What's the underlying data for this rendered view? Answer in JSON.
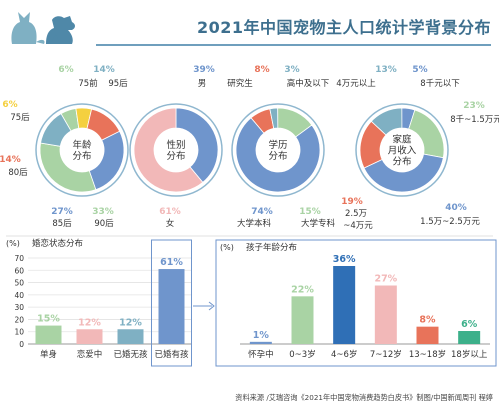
{
  "title": "2021年中国宠物主人口统计学背景分布",
  "source": "资料来源 /艾瑞咨询《2021年中国宠物消费趋势白皮书》制图/中国新闻周刊 程婷",
  "colors": {
    "blue": "#6f95cc",
    "pink": "#f2b8b8",
    "green": "#a9d3a4",
    "teal": "#7fb0c3",
    "red": "#e8735a",
    "yellow": "#f4d03f",
    "darkblue": "#2f6fb6",
    "grey": "#bbbbbb"
  },
  "chart_data": [
    {
      "type": "pie",
      "title": "年龄分布",
      "slices": [
        {
          "label": "75前",
          "value": 6,
          "text": "6%",
          "color": "#a9d3a4"
        },
        {
          "label": "75后",
          "value": 6,
          "text": "6%",
          "color": "#f4d03f"
        },
        {
          "label": "80后",
          "value": 14,
          "text": "14%",
          "color": "#e8735a"
        },
        {
          "label": "85后",
          "value": 27,
          "text": "27%",
          "color": "#6f95cc"
        },
        {
          "label": "90后",
          "value": 33,
          "text": "33%",
          "color": "#a9d3a4"
        },
        {
          "label": "95后",
          "value": 14,
          "text": "14%",
          "color": "#7fb0c3"
        }
      ]
    },
    {
      "type": "pie",
      "title": "性别分布",
      "slices": [
        {
          "label": "男",
          "value": 39,
          "text": "39%",
          "color": "#6f95cc"
        },
        {
          "label": "女",
          "value": 61,
          "text": "61%",
          "color": "#f2b8b8"
        }
      ]
    },
    {
      "type": "pie",
      "title": "学历分布",
      "slices": [
        {
          "label": "研究生",
          "value": 8,
          "text": "8%",
          "color": "#e8735a"
        },
        {
          "label": "高中及以下",
          "value": 3,
          "text": "3%",
          "color": "#7fb0c3"
        },
        {
          "label": "大学专科",
          "value": 15,
          "text": "15%",
          "color": "#a9d3a4"
        },
        {
          "label": "大学本科",
          "value": 74,
          "text": "74%",
          "color": "#6f95cc"
        }
      ]
    },
    {
      "type": "pie",
      "title": "家庭月收入分布",
      "slices": [
        {
          "label": "4万元以上",
          "value": 13,
          "text": "13%",
          "color": "#7fb0c3"
        },
        {
          "label": "8千元以下",
          "value": 5,
          "text": "5%",
          "color": "#6f95cc"
        },
        {
          "label": "8千~1.5万元",
          "value": 23,
          "text": "23%",
          "color": "#a9d3a4"
        },
        {
          "label": "1.5万~2.5万元",
          "value": 40,
          "text": "40%",
          "color": "#6f95cc"
        },
        {
          "label": "2.5万~4万元",
          "value": 19,
          "text": "19%",
          "color": "#e8735a"
        }
      ]
    },
    {
      "type": "bar",
      "title": "婚恋状态分布",
      "ylabel": "(%)",
      "categories": [
        "单身",
        "恋爱中",
        "已婚无孩",
        "已婚有孩"
      ],
      "values": [
        15,
        12,
        12,
        61
      ],
      "labels": [
        "15%",
        "12%",
        "12%",
        "61%"
      ],
      "yticks": [
        0,
        10,
        20,
        30,
        40,
        50,
        60,
        70
      ],
      "ylim": [
        0,
        70
      ],
      "colors": [
        "#a9d3a4",
        "#f2b8b8",
        "#7fb0c3",
        "#6f95cc"
      ]
    },
    {
      "type": "bar",
      "title": "孩子年龄分布",
      "ylabel": "(%)",
      "categories": [
        "怀孕中",
        "0~3岁",
        "4~6岁",
        "7~12岁",
        "13~18岁",
        "18岁以上"
      ],
      "values": [
        1,
        22,
        36,
        27,
        8,
        6
      ],
      "labels": [
        "1%",
        "22%",
        "36%",
        "27%",
        "8%",
        "6%"
      ],
      "ylim": [
        0,
        40
      ],
      "colors": [
        "#6f95cc",
        "#a9d3a4",
        "#2f6fb6",
        "#f2b8b8",
        "#e8735a",
        "#3cb08a"
      ]
    }
  ]
}
